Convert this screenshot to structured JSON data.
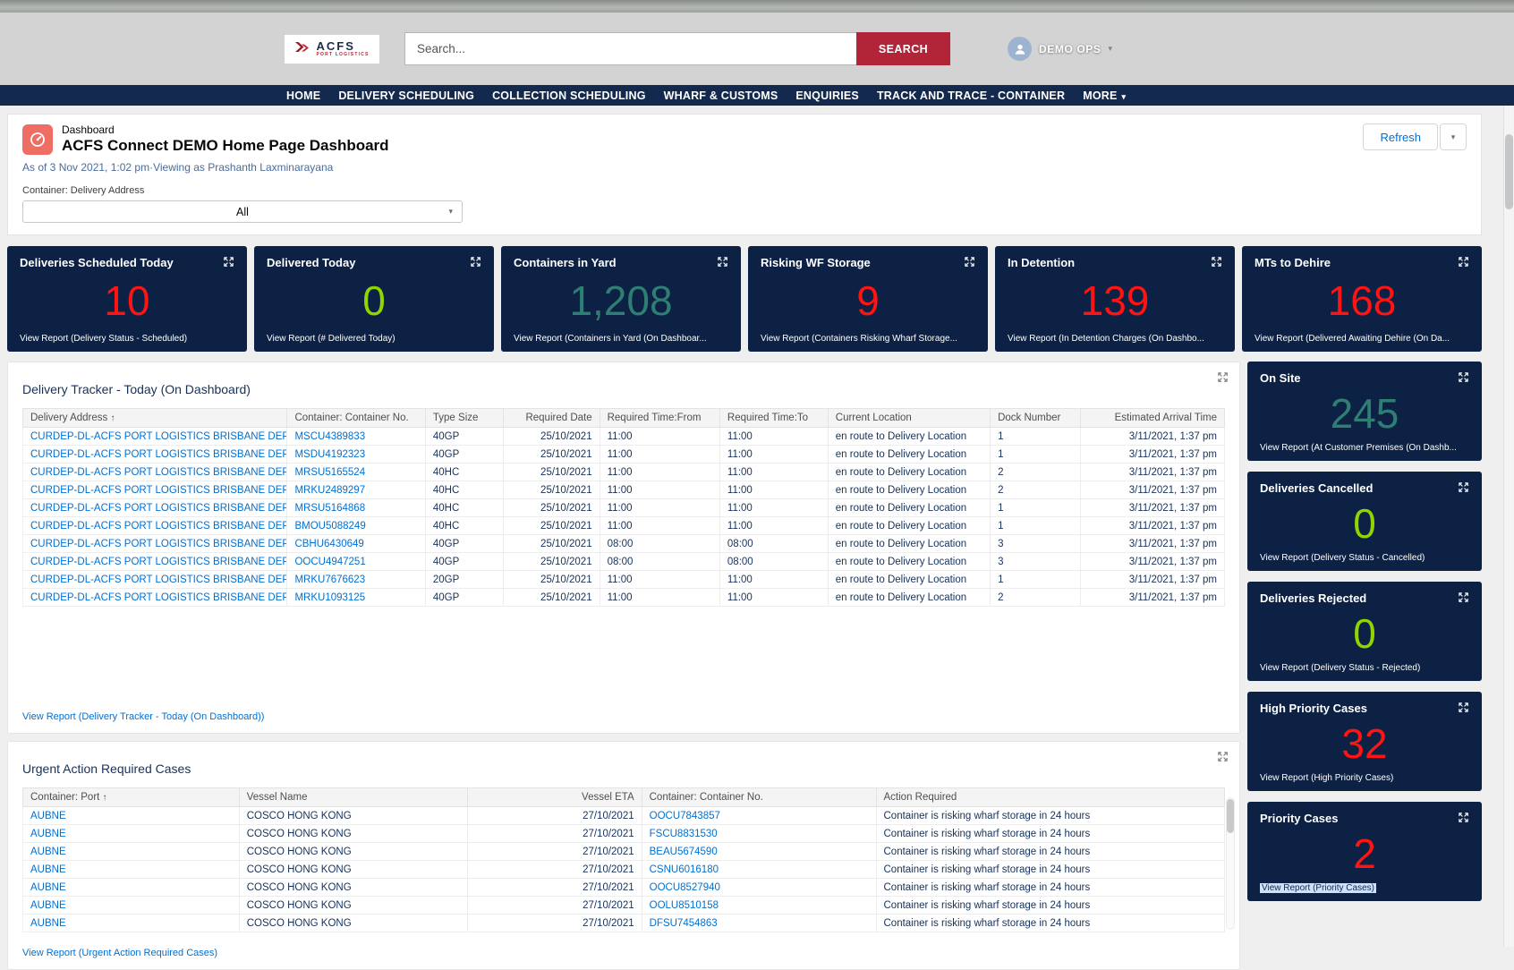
{
  "header": {
    "logo": {
      "brand": "ACFS",
      "sub": "PORT LOGISTICS"
    },
    "search_placeholder": "Search...",
    "search_button": "SEARCH",
    "user_name": "DEMO OPS"
  },
  "nav": {
    "items": [
      {
        "label": "HOME"
      },
      {
        "label": "DELIVERY SCHEDULING"
      },
      {
        "label": "COLLECTION SCHEDULING"
      },
      {
        "label": "WHARF & CUSTOMS"
      },
      {
        "label": "ENQUIRIES"
      },
      {
        "label": "TRACK AND TRACE - CONTAINER"
      },
      {
        "label": "MORE",
        "dropdown": true
      }
    ]
  },
  "dashboard": {
    "type_label": "Dashboard",
    "title": "ACFS Connect DEMO Home Page Dashboard",
    "meta": "As of 3 Nov 2021, 1:02 pm·Viewing as Prashanth Laxminarayana",
    "refresh_label": "Refresh",
    "filter_label": "Container: Delivery Address",
    "filter_value": "All"
  },
  "colors": {
    "red": "#ff1313",
    "green": "#90d500",
    "teal": "#2f7e74",
    "card_bg": "#0c2144",
    "nav_bg": "#13294e",
    "brand_red": "#b22438",
    "link": "#0070d2"
  },
  "kpi_cards": [
    {
      "title": "Deliveries Scheduled Today",
      "value": "10",
      "color": "red",
      "view_report": "View Report (Delivery Status - Scheduled)"
    },
    {
      "title": "Delivered Today",
      "value": "0",
      "color": "green",
      "view_report": "View Report (# Delivered Today)"
    },
    {
      "title": "Containers in Yard",
      "value": "1,208",
      "color": "teal",
      "view_report": "View Report (Containers in Yard (On Dashboar..."
    },
    {
      "title": "Risking WF Storage",
      "value": "9",
      "color": "red",
      "view_report": "View Report (Containers Risking Wharf Storage..."
    },
    {
      "title": "In Detention",
      "value": "139",
      "color": "red",
      "view_report": "View Report (In Detention Charges (On Dashbo..."
    },
    {
      "title": "MTs to Dehire",
      "value": "168",
      "color": "red",
      "view_report": "View Report (Delivered Awaiting Dehire (On Da..."
    }
  ],
  "side_cards": [
    {
      "title": "On Site",
      "value": "245",
      "color": "teal",
      "view_report": "View Report (At Customer Premises (On Dashb..."
    },
    {
      "title": "Deliveries Cancelled",
      "value": "0",
      "color": "green",
      "view_report": "View Report (Delivery Status - Cancelled)"
    },
    {
      "title": "Deliveries Rejected",
      "value": "0",
      "color": "green",
      "view_report": "View Report (Delivery Status - Rejected)"
    },
    {
      "title": "High Priority Cases",
      "value": "32",
      "color": "red",
      "view_report": "View Report (High Priority Cases)"
    },
    {
      "title": "Priority Cases",
      "value": "2",
      "color": "red",
      "view_report": "View Report (Priority Cases)",
      "highlight": true
    }
  ],
  "tracker": {
    "title": "Delivery Tracker - Today (On Dashboard)",
    "columns": [
      "Delivery Address",
      "Container: Container No.",
      "Type Size",
      "Required Date",
      "Required Time:From",
      "Required Time:To",
      "Current Location",
      "Dock Number",
      "Estimated Arrival Time"
    ],
    "rows": [
      [
        "CURDEP-DL-ACFS PORT LOGISTICS BRISBANE DEPOT",
        "MSCU4389833",
        "40GP",
        "25/10/2021",
        "11:00",
        "11:00",
        "en route to Delivery Location",
        "1",
        "3/11/2021, 1:37 pm"
      ],
      [
        "CURDEP-DL-ACFS PORT LOGISTICS BRISBANE DEPOT",
        "MSDU4192323",
        "40GP",
        "25/10/2021",
        "11:00",
        "11:00",
        "en route to Delivery Location",
        "1",
        "3/11/2021, 1:37 pm"
      ],
      [
        "CURDEP-DL-ACFS PORT LOGISTICS BRISBANE DEPOT",
        "MRSU5165524",
        "40HC",
        "25/10/2021",
        "11:00",
        "11:00",
        "en route to Delivery Location",
        "2",
        "3/11/2021, 1:37 pm"
      ],
      [
        "CURDEP-DL-ACFS PORT LOGISTICS BRISBANE DEPOT",
        "MRKU2489297",
        "40HC",
        "25/10/2021",
        "11:00",
        "11:00",
        "en route to Delivery Location",
        "2",
        "3/11/2021, 1:37 pm"
      ],
      [
        "CURDEP-DL-ACFS PORT LOGISTICS BRISBANE DEPOT",
        "MRSU5164868",
        "40HC",
        "25/10/2021",
        "11:00",
        "11:00",
        "en route to Delivery Location",
        "1",
        "3/11/2021, 1:37 pm"
      ],
      [
        "CURDEP-DL-ACFS PORT LOGISTICS BRISBANE DEPOT",
        "BMOU5088249",
        "40HC",
        "25/10/2021",
        "11:00",
        "11:00",
        "en route to Delivery Location",
        "1",
        "3/11/2021, 1:37 pm"
      ],
      [
        "CURDEP-DL-ACFS PORT LOGISTICS BRISBANE DEPOT",
        "CBHU6430649",
        "40GP",
        "25/10/2021",
        "08:00",
        "08:00",
        "en route to Delivery Location",
        "3",
        "3/11/2021, 1:37 pm"
      ],
      [
        "CURDEP-DL-ACFS PORT LOGISTICS BRISBANE DEPOT",
        "OOCU4947251",
        "40GP",
        "25/10/2021",
        "08:00",
        "08:00",
        "en route to Delivery Location",
        "3",
        "3/11/2021, 1:37 pm"
      ],
      [
        "CURDEP-DL-ACFS PORT LOGISTICS BRISBANE DEPOT",
        "MRKU7676623",
        "20GP",
        "25/10/2021",
        "11:00",
        "11:00",
        "en route to Delivery Location",
        "1",
        "3/11/2021, 1:37 pm"
      ],
      [
        "CURDEP-DL-ACFS PORT LOGISTICS BRISBANE DEPOT",
        "MRKU1093125",
        "40GP",
        "25/10/2021",
        "11:00",
        "11:00",
        "en route to Delivery Location",
        "2",
        "3/11/2021, 1:37 pm"
      ]
    ],
    "view_report": "View Report (Delivery Tracker - Today (On Dashboard))"
  },
  "urgent": {
    "title": "Urgent Action Required Cases",
    "columns": [
      "Container: Port",
      "Vessel Name",
      "Vessel ETA",
      "Container: Container No.",
      "Action Required"
    ],
    "rows": [
      [
        "AUBNE",
        "COSCO HONG KONG",
        "27/10/2021",
        "OOCU7843857",
        "Container is risking wharf storage in 24 hours"
      ],
      [
        "AUBNE",
        "COSCO HONG KONG",
        "27/10/2021",
        "FSCU8831530",
        "Container is risking wharf storage in 24 hours"
      ],
      [
        "AUBNE",
        "COSCO HONG KONG",
        "27/10/2021",
        "BEAU5674590",
        "Container is risking wharf storage in 24 hours"
      ],
      [
        "AUBNE",
        "COSCO HONG KONG",
        "27/10/2021",
        "CSNU6016180",
        "Container is risking wharf storage in 24 hours"
      ],
      [
        "AUBNE",
        "COSCO HONG KONG",
        "27/10/2021",
        "OOCU8527940",
        "Container is risking wharf storage in 24 hours"
      ],
      [
        "AUBNE",
        "COSCO HONG KONG",
        "27/10/2021",
        "OOLU8510158",
        "Container is risking wharf storage in 24 hours"
      ],
      [
        "AUBNE",
        "COSCO HONG KONG",
        "27/10/2021",
        "DFSU7454863",
        "Container is risking wharf storage in 24 hours"
      ]
    ],
    "view_report": "View Report (Urgent Action Required Cases)"
  }
}
